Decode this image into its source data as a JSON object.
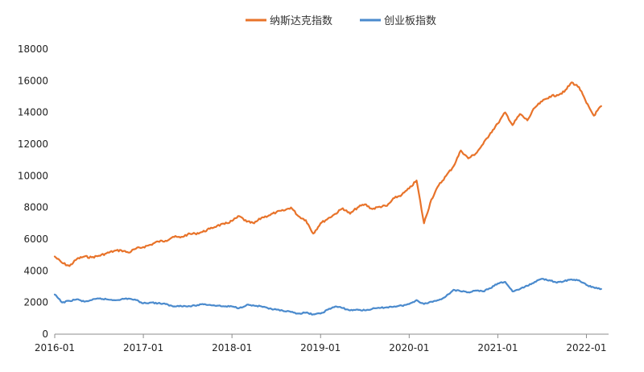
{
  "chart_data": {
    "type": "line",
    "title": "",
    "xlabel": "",
    "ylabel": "",
    "ylim": [
      0,
      18000
    ],
    "yticks": [
      0,
      2000,
      4000,
      6000,
      8000,
      10000,
      12000,
      14000,
      16000,
      18000
    ],
    "xlim": [
      "2016-01",
      "2022-04"
    ],
    "xticks": [
      "2016-01",
      "2017-01",
      "2018-01",
      "2019-01",
      "2020-01",
      "2021-01",
      "2022-01"
    ],
    "xtick_labels": [
      "2016-01",
      "2017-01",
      "2018-01",
      "2019-01",
      "2020-01",
      "2021-01",
      "2022-01"
    ],
    "grid": false,
    "legend_position": "top",
    "series": [
      {
        "name": "纳斯达克指数",
        "color": "#E8732A",
        "points": [
          [
            "2016-01",
            4900
          ],
          [
            "2016-02",
            4500
          ],
          [
            "2016-03",
            4300
          ],
          [
            "2016-04",
            4750
          ],
          [
            "2016-05",
            4900
          ],
          [
            "2016-06",
            4850
          ],
          [
            "2016-07",
            4950
          ],
          [
            "2016-08",
            5100
          ],
          [
            "2016-09",
            5250
          ],
          [
            "2016-10",
            5300
          ],
          [
            "2016-11",
            5150
          ],
          [
            "2016-12",
            5400
          ],
          [
            "2017-01",
            5500
          ],
          [
            "2017-02",
            5650
          ],
          [
            "2017-03",
            5850
          ],
          [
            "2017-04",
            5900
          ],
          [
            "2017-05",
            6150
          ],
          [
            "2017-06",
            6100
          ],
          [
            "2017-07",
            6300
          ],
          [
            "2017-08",
            6350
          ],
          [
            "2017-09",
            6450
          ],
          [
            "2017-10",
            6650
          ],
          [
            "2017-11",
            6850
          ],
          [
            "2017-12",
            6950
          ],
          [
            "2018-01",
            7150
          ],
          [
            "2018-02",
            7450
          ],
          [
            "2018-03",
            7100
          ],
          [
            "2018-04",
            7000
          ],
          [
            "2018-05",
            7350
          ],
          [
            "2018-06",
            7500
          ],
          [
            "2018-07",
            7700
          ],
          [
            "2018-08",
            7800
          ],
          [
            "2018-09",
            8000
          ],
          [
            "2018-10",
            7450
          ],
          [
            "2018-11",
            7200
          ],
          [
            "2018-12",
            6350
          ],
          [
            "2019-01",
            7000
          ],
          [
            "2019-02",
            7300
          ],
          [
            "2019-03",
            7600
          ],
          [
            "2019-04",
            7950
          ],
          [
            "2019-05",
            7600
          ],
          [
            "2019-06",
            8000
          ],
          [
            "2019-07",
            8200
          ],
          [
            "2019-08",
            7900
          ],
          [
            "2019-09",
            8050
          ],
          [
            "2019-10",
            8100
          ],
          [
            "2019-11",
            8600
          ],
          [
            "2019-12",
            8800
          ],
          [
            "2020-01",
            9200
          ],
          [
            "2020-02",
            9700
          ],
          [
            "2020-03",
            7000
          ],
          [
            "2020-04",
            8500
          ],
          [
            "2020-05",
            9400
          ],
          [
            "2020-06",
            10000
          ],
          [
            "2020-07",
            10600
          ],
          [
            "2020-08",
            11600
          ],
          [
            "2020-09",
            11100
          ],
          [
            "2020-10",
            11400
          ],
          [
            "2020-11",
            12000
          ],
          [
            "2020-12",
            12700
          ],
          [
            "2021-01",
            13300
          ],
          [
            "2021-02",
            14000
          ],
          [
            "2021-03",
            13200
          ],
          [
            "2021-04",
            13900
          ],
          [
            "2021-05",
            13500
          ],
          [
            "2021-06",
            14300
          ],
          [
            "2021-07",
            14700
          ],
          [
            "2021-08",
            15000
          ],
          [
            "2021-09",
            15100
          ],
          [
            "2021-10",
            15300
          ],
          [
            "2021-11",
            15900
          ],
          [
            "2021-12",
            15600
          ],
          [
            "2022-01",
            14600
          ],
          [
            "2022-02",
            13800
          ],
          [
            "2022-03",
            14400
          ]
        ]
      },
      {
        "name": "创业板指数",
        "color": "#4A8ACD",
        "points": [
          [
            "2016-01",
            2500
          ],
          [
            "2016-02",
            2000
          ],
          [
            "2016-03",
            2100
          ],
          [
            "2016-04",
            2200
          ],
          [
            "2016-05",
            2050
          ],
          [
            "2016-06",
            2150
          ],
          [
            "2016-07",
            2250
          ],
          [
            "2016-08",
            2200
          ],
          [
            "2016-09",
            2150
          ],
          [
            "2016-10",
            2200
          ],
          [
            "2016-11",
            2250
          ],
          [
            "2016-12",
            2150
          ],
          [
            "2017-01",
            1950
          ],
          [
            "2017-02",
            2000
          ],
          [
            "2017-03",
            1950
          ],
          [
            "2017-04",
            1900
          ],
          [
            "2017-05",
            1750
          ],
          [
            "2017-06",
            1800
          ],
          [
            "2017-07",
            1750
          ],
          [
            "2017-08",
            1800
          ],
          [
            "2017-09",
            1900
          ],
          [
            "2017-10",
            1850
          ],
          [
            "2017-11",
            1800
          ],
          [
            "2017-12",
            1750
          ],
          [
            "2018-01",
            1750
          ],
          [
            "2018-02",
            1650
          ],
          [
            "2018-03",
            1850
          ],
          [
            "2018-04",
            1800
          ],
          [
            "2018-05",
            1750
          ],
          [
            "2018-06",
            1600
          ],
          [
            "2018-07",
            1550
          ],
          [
            "2018-08",
            1450
          ],
          [
            "2018-09",
            1400
          ],
          [
            "2018-10",
            1300
          ],
          [
            "2018-11",
            1350
          ],
          [
            "2018-12",
            1250
          ],
          [
            "2019-01",
            1300
          ],
          [
            "2019-02",
            1550
          ],
          [
            "2019-03",
            1750
          ],
          [
            "2019-04",
            1650
          ],
          [
            "2019-05",
            1500
          ],
          [
            "2019-06",
            1550
          ],
          [
            "2019-07",
            1500
          ],
          [
            "2019-08",
            1600
          ],
          [
            "2019-09",
            1650
          ],
          [
            "2019-10",
            1700
          ],
          [
            "2019-11",
            1750
          ],
          [
            "2019-12",
            1800
          ],
          [
            "2020-01",
            1900
          ],
          [
            "2020-02",
            2150
          ],
          [
            "2020-03",
            1900
          ],
          [
            "2020-04",
            2050
          ],
          [
            "2020-05",
            2150
          ],
          [
            "2020-06",
            2400
          ],
          [
            "2020-07",
            2800
          ],
          [
            "2020-08",
            2700
          ],
          [
            "2020-09",
            2650
          ],
          [
            "2020-10",
            2750
          ],
          [
            "2020-11",
            2700
          ],
          [
            "2020-12",
            2900
          ],
          [
            "2021-01",
            3200
          ],
          [
            "2021-02",
            3300
          ],
          [
            "2021-03",
            2700
          ],
          [
            "2021-04",
            2850
          ],
          [
            "2021-05",
            3050
          ],
          [
            "2021-06",
            3300
          ],
          [
            "2021-07",
            3500
          ],
          [
            "2021-08",
            3400
          ],
          [
            "2021-09",
            3250
          ],
          [
            "2021-10",
            3350
          ],
          [
            "2021-11",
            3450
          ],
          [
            "2021-12",
            3400
          ],
          [
            "2022-01",
            3100
          ],
          [
            "2022-02",
            2950
          ],
          [
            "2022-03",
            2850
          ]
        ]
      }
    ]
  }
}
